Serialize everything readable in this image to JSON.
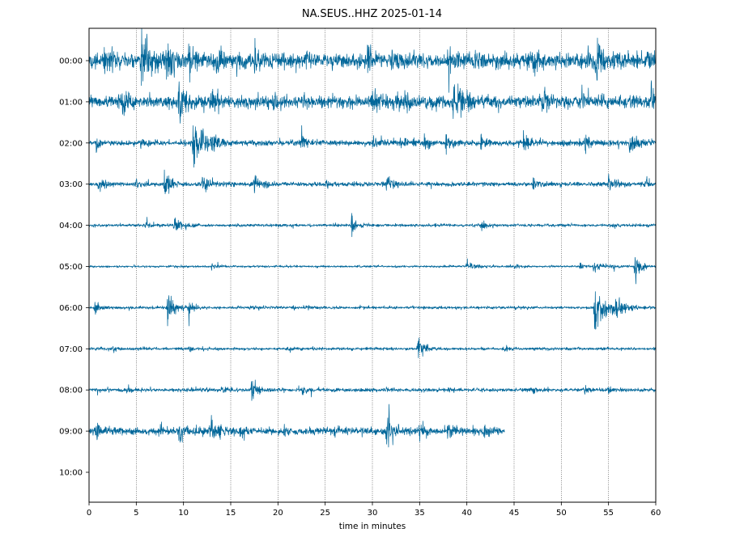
{
  "chart_data": {
    "type": "line",
    "title": "NA.SEUS..HHZ 2025-01-14",
    "xlabel": "time in minutes",
    "ylabel": "",
    "xlim": [
      0,
      60
    ],
    "x_ticks": [
      0,
      5,
      10,
      15,
      20,
      25,
      30,
      35,
      40,
      45,
      50,
      55,
      60
    ],
    "grid": "vertical dotted",
    "line_color": "#006699",
    "seed": 20250114,
    "rows": [
      {
        "label": "00:00",
        "end": 60,
        "base": 0.22,
        "bursts": [
          [
            1.5,
            0.35,
            1.6
          ],
          [
            5.5,
            0.75,
            2.2
          ],
          [
            8.2,
            0.5,
            1.5
          ],
          [
            10.5,
            0.4,
            1.2
          ],
          [
            13.5,
            0.45,
            1.0
          ],
          [
            17.5,
            0.35,
            1.0
          ],
          [
            23,
            0.3,
            0.9
          ],
          [
            29.5,
            0.4,
            1.0
          ],
          [
            32,
            0.25,
            1.2
          ],
          [
            38,
            0.3,
            0.8
          ],
          [
            41,
            0.35,
            1.0
          ],
          [
            47,
            0.45,
            1.2
          ],
          [
            53.5,
            0.55,
            1.6
          ],
          [
            59,
            0.45,
            1.2
          ]
        ]
      },
      {
        "label": "01:00",
        "end": 60,
        "base": 0.18,
        "bursts": [
          [
            3.5,
            0.3,
            1.2
          ],
          [
            9.5,
            0.45,
            1.5
          ],
          [
            13,
            0.3,
            1.0
          ],
          [
            19.5,
            0.3,
            1.0
          ],
          [
            30,
            0.3,
            1.0
          ],
          [
            33.5,
            0.3,
            0.9
          ],
          [
            38.5,
            0.45,
            1.2
          ],
          [
            39,
            0.35,
            2.2
          ],
          [
            48,
            0.3,
            1.0
          ],
          [
            52,
            0.25,
            0.8
          ],
          [
            59.5,
            0.35,
            0.9
          ]
        ]
      },
      {
        "label": "02:00",
        "end": 60,
        "base": 0.08,
        "bursts": [
          [
            0.8,
            0.3,
            0.6
          ],
          [
            5.5,
            0.15,
            1.0
          ],
          [
            11,
            0.75,
            2.5
          ],
          [
            13,
            0.3,
            1.0
          ],
          [
            22.5,
            0.28,
            1.0
          ],
          [
            30,
            0.25,
            1.4
          ],
          [
            33,
            0.2,
            1.0
          ],
          [
            35.5,
            0.22,
            0.8
          ],
          [
            37.8,
            0.35,
            1.2
          ],
          [
            41.5,
            0.2,
            0.8
          ],
          [
            46,
            0.35,
            1.0
          ],
          [
            52.5,
            0.35,
            0.9
          ],
          [
            57.2,
            0.22,
            2.5
          ]
        ]
      },
      {
        "label": "03:00",
        "end": 60,
        "base": 0.06,
        "bursts": [
          [
            1,
            0.25,
            1.0
          ],
          [
            5,
            0.2,
            0.8
          ],
          [
            8,
            0.5,
            1.3
          ],
          [
            12,
            0.3,
            1.5
          ],
          [
            17.5,
            0.25,
            1.5
          ],
          [
            25,
            0.15,
            0.8
          ],
          [
            31.5,
            0.25,
            1.4
          ],
          [
            47,
            0.2,
            1.0
          ],
          [
            55,
            0.2,
            1.8
          ],
          [
            59,
            0.2,
            0.8
          ]
        ]
      },
      {
        "label": "04:00",
        "end": 60,
        "base": 0.04,
        "bursts": [
          [
            6,
            0.1,
            0.9
          ],
          [
            9,
            0.3,
            1.5
          ],
          [
            27.8,
            0.3,
            1.0
          ],
          [
            41.5,
            0.12,
            1.3
          ],
          [
            55.5,
            0.08,
            0.8
          ]
        ]
      },
      {
        "label": "05:00",
        "end": 60,
        "base": 0.03,
        "bursts": [
          [
            13,
            0.1,
            0.9
          ],
          [
            40,
            0.12,
            2.0
          ],
          [
            45,
            0.1,
            1.0
          ],
          [
            52,
            0.15,
            0.9
          ],
          [
            53.4,
            0.12,
            3.2
          ],
          [
            57.8,
            0.6,
            1.0
          ]
        ]
      },
      {
        "label": "06:00",
        "end": 60,
        "base": 0.04,
        "bursts": [
          [
            0.6,
            0.25,
            1.0
          ],
          [
            8.3,
            0.5,
            1.4
          ],
          [
            10.5,
            0.25,
            1.0
          ],
          [
            17,
            0.15,
            0.8
          ],
          [
            23,
            0.1,
            0.8
          ],
          [
            53.5,
            1.0,
            2.8
          ],
          [
            55.5,
            0.4,
            1.0
          ]
        ]
      },
      {
        "label": "07:00",
        "end": 60,
        "base": 0.04,
        "bursts": [
          [
            2.5,
            0.1,
            0.8
          ],
          [
            10.5,
            0.1,
            0.8
          ],
          [
            21,
            0.1,
            0.8
          ],
          [
            34.8,
            0.35,
            1.4
          ],
          [
            44,
            0.1,
            0.8
          ]
        ]
      },
      {
        "label": "08:00",
        "end": 60,
        "base": 0.05,
        "bursts": [
          [
            0.8,
            0.1,
            0.8
          ],
          [
            4,
            0.08,
            0.8
          ],
          [
            10.8,
            0.1,
            0.8
          ],
          [
            14,
            0.12,
            0.8
          ],
          [
            17.2,
            0.3,
            1.5
          ],
          [
            22.5,
            0.2,
            0.9
          ],
          [
            47,
            0.12,
            0.8
          ],
          [
            52.5,
            0.12,
            0.8
          ],
          [
            55,
            0.15,
            0.9
          ]
        ]
      },
      {
        "label": "09:00",
        "end": 44,
        "base": 0.1,
        "bursts": [
          [
            0.8,
            0.3,
            1.0
          ],
          [
            9.5,
            0.25,
            1.2
          ],
          [
            12.7,
            0.3,
            2.4
          ],
          [
            16,
            0.15,
            0.8
          ],
          [
            20.5,
            0.15,
            0.8
          ],
          [
            26,
            0.15,
            0.8
          ],
          [
            31.5,
            0.6,
            1.2
          ],
          [
            35,
            0.3,
            0.9
          ],
          [
            38,
            0.2,
            1.0
          ],
          [
            41.8,
            0.35,
            1.0
          ]
        ]
      },
      {
        "label": "10:00",
        "end": 0,
        "base": 0,
        "bursts": []
      }
    ]
  }
}
